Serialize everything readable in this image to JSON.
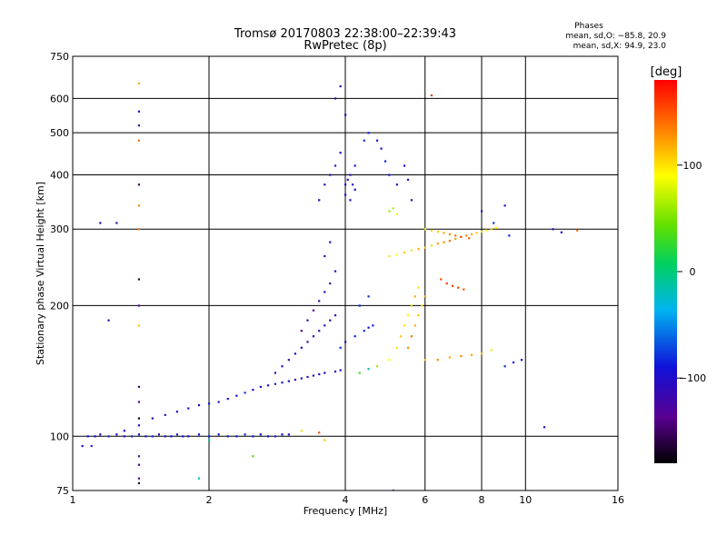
{
  "chart_data": {
    "type": "scatter",
    "title": "Tromsø 20170803 22:38:00–22:39:43",
    "subtitle": "RwPretec (8p)",
    "xlabel": "Frequency [MHz]",
    "ylabel": "Stationary phase Virtual Height [km]",
    "x_scale": "log",
    "y_scale": "log",
    "xlim": [
      1,
      16
    ],
    "ylim": [
      75,
      750
    ],
    "x_ticks": [
      1,
      2,
      4,
      6,
      8,
      10,
      16
    ],
    "x_tick_labels": [
      "1",
      "2",
      "4",
      "6",
      "8",
      "10",
      "16"
    ],
    "y_ticks": [
      75,
      100,
      200,
      300,
      400,
      500,
      600,
      750
    ],
    "y_tick_labels": [
      "75",
      "100",
      "200",
      "300",
      "400",
      "500",
      "600",
      "750"
    ],
    "grid": true,
    "grid_x": [
      2,
      4,
      6,
      8,
      10
    ],
    "grid_y": [
      100,
      200,
      300,
      400,
      500,
      600
    ],
    "phase_stats": {
      "title": "Phases",
      "line_o": "mean, sd,O: −85.8, 20.9",
      "line_x": "mean, sd,X:  94.9, 23.0"
    },
    "colorbar": {
      "label": "[deg]",
      "range": [
        -180,
        180
      ],
      "ticks": [
        100,
        0,
        -100
      ],
      "tick_labels": [
        "100",
        "0",
        "−100"
      ],
      "colormap": "rainbow"
    },
    "series": [
      {
        "points": [
          [
            1.08,
            100,
            -95
          ],
          [
            1.12,
            100,
            -90
          ],
          [
            1.15,
            101,
            -100
          ],
          [
            1.2,
            100,
            -80
          ],
          [
            1.25,
            101,
            -95
          ],
          [
            1.3,
            100,
            -100
          ],
          [
            1.35,
            100,
            -85
          ],
          [
            1.4,
            101,
            -90
          ],
          [
            1.45,
            100,
            -100
          ],
          [
            1.5,
            100,
            -80
          ],
          [
            1.55,
            101,
            -95
          ],
          [
            1.6,
            100,
            -100
          ],
          [
            1.65,
            100,
            -90
          ],
          [
            1.7,
            101,
            -85
          ],
          [
            1.75,
            100,
            -95
          ],
          [
            1.8,
            100,
            -100
          ],
          [
            1.9,
            101,
            -90
          ],
          [
            2.0,
            100,
            -85
          ],
          [
            2.1,
            101,
            -95
          ],
          [
            2.2,
            100,
            -100
          ],
          [
            2.3,
            100,
            -90
          ],
          [
            2.4,
            101,
            -80
          ],
          [
            2.5,
            100,
            -95
          ],
          [
            2.6,
            101,
            -100
          ],
          [
            2.7,
            100,
            -90
          ],
          [
            2.8,
            100,
            -85
          ],
          [
            2.9,
            101,
            -95
          ],
          [
            3.0,
            101,
            -100
          ],
          [
            1.3,
            103,
            -95
          ],
          [
            1.4,
            106,
            -90
          ],
          [
            1.5,
            110,
            -100
          ],
          [
            1.6,
            112,
            -85
          ],
          [
            1.7,
            114,
            -95
          ],
          [
            1.8,
            116,
            -100
          ],
          [
            1.9,
            118,
            -90
          ],
          [
            2.0,
            119,
            -85
          ],
          [
            2.1,
            120,
            -95
          ],
          [
            2.2,
            122,
            -100
          ],
          [
            2.3,
            124,
            -90
          ],
          [
            2.4,
            126,
            -80
          ],
          [
            2.5,
            128,
            -95
          ],
          [
            2.6,
            130,
            -100
          ],
          [
            2.7,
            131,
            -90
          ],
          [
            2.8,
            132,
            -85
          ],
          [
            2.9,
            133,
            -95
          ],
          [
            3.0,
            134,
            -100
          ],
          [
            3.1,
            135,
            -120
          ],
          [
            3.2,
            136,
            -95
          ],
          [
            3.3,
            137,
            -100
          ],
          [
            3.4,
            138,
            -90
          ],
          [
            3.5,
            139,
            -110
          ],
          [
            3.6,
            140,
            -95
          ],
          [
            3.8,
            141,
            -100
          ],
          [
            3.9,
            142,
            -90
          ],
          [
            2.8,
            140,
            -100
          ],
          [
            2.9,
            145,
            -110
          ],
          [
            3.0,
            150,
            -120
          ],
          [
            3.1,
            155,
            -100
          ],
          [
            3.2,
            160,
            -110
          ],
          [
            3.3,
            165,
            -120
          ],
          [
            3.4,
            170,
            -115
          ],
          [
            3.5,
            175,
            -120
          ],
          [
            3.6,
            180,
            -110
          ],
          [
            3.7,
            185,
            -100
          ],
          [
            3.8,
            190,
            -95
          ],
          [
            3.2,
            175,
            -140
          ],
          [
            3.3,
            185,
            -120
          ],
          [
            3.4,
            195,
            -130
          ],
          [
            3.5,
            205,
            -120
          ],
          [
            3.6,
            215,
            -110
          ],
          [
            3.7,
            225,
            -120
          ],
          [
            3.8,
            240,
            -100
          ],
          [
            3.6,
            260,
            -110
          ],
          [
            3.7,
            280,
            -105
          ],
          [
            3.9,
            160,
            -80
          ],
          [
            4.0,
            165,
            -90
          ],
          [
            4.2,
            170,
            -85
          ],
          [
            4.4,
            175,
            -80
          ],
          [
            4.5,
            178,
            -95
          ],
          [
            4.6,
            180,
            -85
          ],
          [
            4.3,
            200,
            -90
          ],
          [
            4.5,
            210,
            -80
          ],
          [
            3.5,
            350,
            -90
          ],
          [
            3.6,
            380,
            -100
          ],
          [
            3.7,
            400,
            -95
          ],
          [
            3.8,
            420,
            -85
          ],
          [
            3.9,
            450,
            -90
          ],
          [
            4.0,
            380,
            -100
          ],
          [
            4.05,
            390,
            -105
          ],
          [
            4.1,
            400,
            -110
          ],
          [
            4.15,
            380,
            -100
          ],
          [
            4.2,
            370,
            -95
          ],
          [
            4.0,
            360,
            -100
          ],
          [
            4.1,
            350,
            -105
          ],
          [
            4.2,
            420,
            -90
          ],
          [
            4.4,
            480,
            -80
          ],
          [
            4.5,
            500,
            -85
          ],
          [
            4.7,
            480,
            -90
          ],
          [
            4.8,
            460,
            -95
          ],
          [
            4.9,
            430,
            -85
          ],
          [
            5.0,
            400,
            -90
          ],
          [
            5.2,
            380,
            -100
          ],
          [
            5.4,
            420,
            -95
          ],
          [
            5.5,
            390,
            -100
          ],
          [
            5.6,
            350,
            -105
          ],
          [
            3.8,
            600,
            -110
          ],
          [
            3.9,
            640,
            -100
          ],
          [
            4.0,
            550,
            -95
          ],
          [
            4.3,
            140,
            30
          ],
          [
            4.5,
            143,
            -20
          ],
          [
            4.7,
            145,
            60
          ],
          [
            5.0,
            150,
            90
          ],
          [
            5.2,
            160,
            100
          ],
          [
            5.3,
            170,
            110
          ],
          [
            5.4,
            180,
            100
          ],
          [
            5.5,
            190,
            95
          ],
          [
            5.6,
            200,
            110
          ],
          [
            5.7,
            210,
            120
          ],
          [
            5.8,
            220,
            100
          ],
          [
            5.5,
            160,
            130
          ],
          [
            5.6,
            170,
            140
          ],
          [
            5.7,
            180,
            120
          ],
          [
            5.8,
            190,
            110
          ],
          [
            5.9,
            200,
            100
          ],
          [
            6.0,
            210,
            120
          ],
          [
            5.0,
            260,
            100
          ],
          [
            5.2,
            262,
            90
          ],
          [
            5.4,
            265,
            110
          ],
          [
            5.6,
            268,
            100
          ],
          [
            5.8,
            270,
            120
          ],
          [
            6.0,
            272,
            110
          ],
          [
            6.2,
            275,
            100
          ],
          [
            6.4,
            278,
            120
          ],
          [
            6.6,
            280,
            130
          ],
          [
            6.8,
            282,
            140
          ],
          [
            7.0,
            285,
            120
          ],
          [
            7.2,
            288,
            110
          ],
          [
            7.4,
            290,
            130
          ],
          [
            7.6,
            292,
            120
          ],
          [
            7.8,
            294,
            110
          ],
          [
            8.0,
            296,
            100
          ],
          [
            8.2,
            298,
            90
          ],
          [
            8.4,
            300,
            110
          ],
          [
            8.6,
            302,
            100
          ],
          [
            6.0,
            300,
            100
          ],
          [
            6.2,
            298,
            110
          ],
          [
            6.4,
            296,
            105
          ],
          [
            6.6,
            294,
            120
          ],
          [
            6.8,
            292,
            130
          ],
          [
            7.0,
            290,
            140
          ],
          [
            7.2,
            288,
            150
          ],
          [
            7.5,
            286,
            145
          ],
          [
            6.5,
            230,
            150
          ],
          [
            6.7,
            225,
            160
          ],
          [
            6.9,
            222,
            155
          ],
          [
            7.1,
            220,
            160
          ],
          [
            7.3,
            218,
            150
          ],
          [
            5.0,
            330,
            60
          ],
          [
            5.1,
            335,
            70
          ],
          [
            5.2,
            325,
            80
          ],
          [
            6.0,
            150,
            110
          ],
          [
            6.4,
            150,
            130
          ],
          [
            6.8,
            152,
            120
          ],
          [
            7.2,
            153,
            130
          ],
          [
            7.6,
            154,
            120
          ],
          [
            8.0,
            155,
            110
          ],
          [
            8.4,
            158,
            100
          ],
          [
            9.0,
            145,
            -80
          ],
          [
            9.4,
            148,
            -90
          ],
          [
            9.8,
            150,
            -85
          ],
          [
            8.0,
            330,
            -90
          ],
          [
            8.5,
            310,
            -80
          ],
          [
            9.0,
            340,
            -100
          ],
          [
            9.2,
            290,
            -85
          ],
          [
            11.5,
            300,
            -100
          ],
          [
            12.0,
            295,
            -90
          ],
          [
            13.0,
            298,
            140
          ],
          [
            1.4,
            650,
            120
          ],
          [
            1.4,
            560,
            -100
          ],
          [
            1.4,
            520,
            -120
          ],
          [
            1.4,
            480,
            140
          ],
          [
            1.4,
            380,
            -150
          ],
          [
            1.4,
            340,
            130
          ],
          [
            1.4,
            300,
            140
          ],
          [
            1.4,
            230,
            -160
          ],
          [
            1.4,
            200,
            -140
          ],
          [
            1.4,
            180,
            110
          ],
          [
            1.4,
            130,
            -150
          ],
          [
            1.4,
            120,
            -140
          ],
          [
            1.4,
            110,
            -170
          ],
          [
            1.4,
            90,
            -120
          ],
          [
            1.4,
            86,
            -130
          ],
          [
            1.4,
            80,
            -140
          ],
          [
            1.4,
            78,
            -160
          ],
          [
            1.15,
            310,
            -100
          ],
          [
            1.25,
            310,
            -110
          ],
          [
            1.2,
            185,
            -100
          ],
          [
            1.05,
            95,
            -90
          ],
          [
            1.1,
            95,
            -80
          ],
          [
            1.9,
            80,
            -20
          ],
          [
            2.0,
            98,
            -10
          ],
          [
            2.5,
            90,
            40
          ],
          [
            3.2,
            103,
            100
          ],
          [
            3.5,
            102,
            150
          ],
          [
            3.6,
            98,
            110
          ],
          [
            6.2,
            610,
            160
          ],
          [
            5.1,
            75,
            -100
          ],
          [
            11.0,
            105,
            -100
          ]
        ]
      }
    ]
  }
}
